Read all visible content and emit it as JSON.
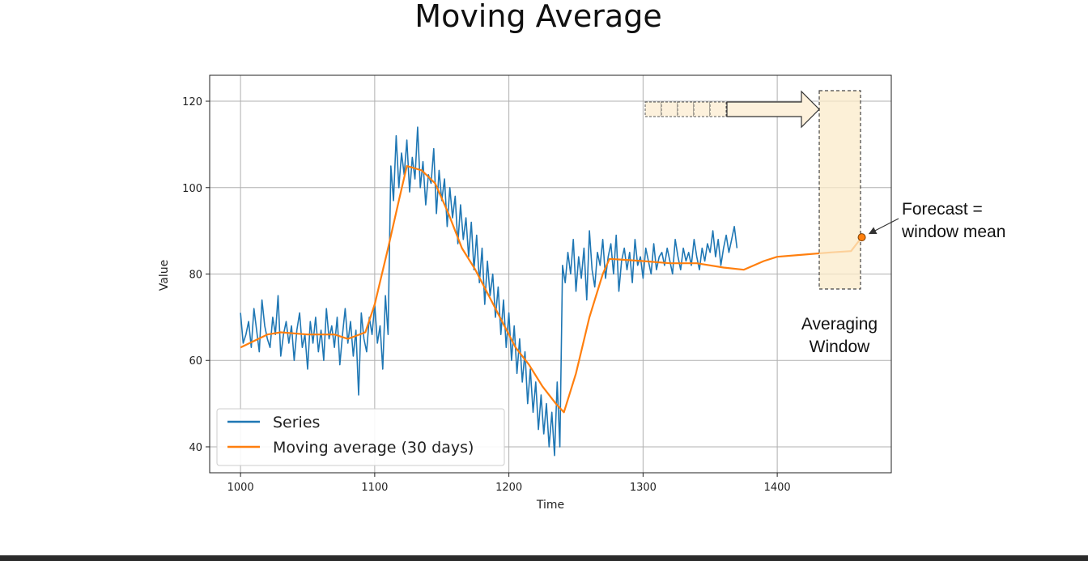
{
  "slide": {
    "title": "Moving Average"
  },
  "chart_data": {
    "type": "line",
    "title": "",
    "xlabel": "Time",
    "ylabel": "Value",
    "xlim": [
      977,
      1485
    ],
    "ylim": [
      34,
      126
    ],
    "xticks": [
      1000,
      1100,
      1200,
      1300,
      1400
    ],
    "yticks": [
      40,
      60,
      80,
      100,
      120
    ],
    "grid": true,
    "legend_position": "lower-left",
    "series": [
      {
        "name": "Series",
        "color": "#1f77b4",
        "x_start": 1000,
        "x_step": 2,
        "values": [
          71,
          64,
          66,
          69,
          63,
          72,
          67,
          62,
          74,
          68,
          65,
          63,
          70,
          66,
          75,
          61,
          66,
          69,
          64,
          68,
          60,
          67,
          71,
          63,
          66,
          58,
          69,
          64,
          70,
          62,
          67,
          60,
          72,
          65,
          68,
          63,
          70,
          59,
          66,
          72,
          64,
          69,
          61,
          67,
          52,
          71,
          65,
          62,
          70,
          66,
          73,
          64,
          68,
          58,
          75,
          66,
          105,
          97,
          112,
          100,
          108,
          103,
          111,
          99,
          107,
          102,
          114,
          100,
          106,
          96,
          103,
          101,
          109,
          94,
          104,
          97,
          102,
          91,
          100,
          93,
          98,
          87,
          96,
          88,
          93,
          84,
          92,
          81,
          89,
          78,
          86,
          73,
          83,
          75,
          80,
          70,
          77,
          66,
          74,
          63,
          71,
          60,
          68,
          57,
          65,
          55,
          62,
          50,
          58,
          48,
          55,
          44,
          52,
          43,
          50,
          40,
          48,
          38,
          55,
          40,
          82,
          78,
          85,
          80,
          88,
          76,
          84,
          79,
          86,
          74,
          90,
          81,
          77,
          85,
          82,
          88,
          79,
          84,
          87,
          80,
          89,
          76,
          83,
          86,
          81,
          85,
          78,
          88,
          82,
          84,
          79,
          86,
          83,
          80,
          87,
          81,
          84,
          85,
          82,
          86,
          83,
          80,
          88,
          84,
          81,
          86,
          83,
          85,
          82,
          88,
          84,
          81,
          86,
          83,
          87,
          85,
          90,
          84,
          88,
          82,
          86,
          89,
          85,
          88,
          91,
          86
        ]
      },
      {
        "name": "Moving average (30 days)",
        "color": "#ff7f0e",
        "points": [
          [
            1000,
            63
          ],
          [
            1010,
            64.5
          ],
          [
            1020,
            66
          ],
          [
            1030,
            66.5
          ],
          [
            1050,
            66
          ],
          [
            1070,
            66
          ],
          [
            1080,
            65
          ],
          [
            1093,
            66.5
          ],
          [
            1100,
            73
          ],
          [
            1110,
            86
          ],
          [
            1118,
            97
          ],
          [
            1124,
            105
          ],
          [
            1135,
            104
          ],
          [
            1145,
            101
          ],
          [
            1155,
            94
          ],
          [
            1165,
            86
          ],
          [
            1175,
            81
          ],
          [
            1185,
            75
          ],
          [
            1195,
            69
          ],
          [
            1205,
            63
          ],
          [
            1215,
            59
          ],
          [
            1225,
            54
          ],
          [
            1235,
            50
          ],
          [
            1241,
            48
          ],
          [
            1250,
            57
          ],
          [
            1260,
            70
          ],
          [
            1270,
            80
          ],
          [
            1275,
            83.5
          ],
          [
            1300,
            83
          ],
          [
            1320,
            82.5
          ],
          [
            1340,
            82.5
          ],
          [
            1360,
            81.5
          ],
          [
            1375,
            81
          ],
          [
            1390,
            83
          ],
          [
            1400,
            84
          ],
          [
            1420,
            84.5
          ],
          [
            1440,
            85
          ],
          [
            1455,
            85.3
          ],
          [
            1463,
            88.5
          ]
        ]
      }
    ],
    "forecast_point": {
      "x": 1463,
      "y": 88.5,
      "color": "#ff7f0e"
    },
    "annotations": {
      "forecast_label": [
        "Forecast =",
        "window mean"
      ],
      "window_label": [
        "Averaging",
        "Window"
      ],
      "window_range": {
        "x": [
          1430,
          1462
        ],
        "y": [
          75.5,
          122.5
        ]
      }
    }
  }
}
